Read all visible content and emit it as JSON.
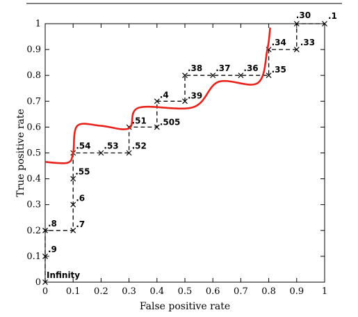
{
  "chart_data": {
    "type": "line",
    "title": "",
    "xlabel": "False positive rate",
    "ylabel": "True positive rate",
    "xlim": [
      0,
      1
    ],
    "ylim": [
      0,
      1
    ],
    "x_ticks": [
      "0",
      "0.1",
      "0.2",
      "0.3",
      "0.4",
      "0.5",
      "0.6",
      "0.7",
      "0.8",
      "0.9",
      "1"
    ],
    "y_ticks": [
      "0",
      "0.1",
      "0.2",
      "0.3",
      "0.4",
      "0.5",
      "0.6",
      "0.7",
      "0.8",
      "0.9",
      "1"
    ],
    "grid": false,
    "legend": "none",
    "series": [
      {
        "style": "dashed-step-with-x-markers",
        "color": "#000000",
        "points": [
          {
            "x": 0.0,
            "y": 0.0,
            "label": "Infinity"
          },
          {
            "x": 0.0,
            "y": 0.1,
            "label": ".9"
          },
          {
            "x": 0.0,
            "y": 0.2,
            "label": ".8"
          },
          {
            "x": 0.1,
            "y": 0.2,
            "label": ".7"
          },
          {
            "x": 0.1,
            "y": 0.3,
            "label": ".6"
          },
          {
            "x": 0.1,
            "y": 0.4,
            "label": ".55"
          },
          {
            "x": 0.1,
            "y": 0.5,
            "label": ".54"
          },
          {
            "x": 0.2,
            "y": 0.5,
            "label": ".53"
          },
          {
            "x": 0.3,
            "y": 0.5,
            "label": ".52"
          },
          {
            "x": 0.3,
            "y": 0.6,
            "label": ".51"
          },
          {
            "x": 0.4,
            "y": 0.6,
            "label": ".505"
          },
          {
            "x": 0.4,
            "y": 0.7,
            "label": ".4"
          },
          {
            "x": 0.5,
            "y": 0.7,
            "label": ".39"
          },
          {
            "x": 0.5,
            "y": 0.8,
            "label": ".38"
          },
          {
            "x": 0.6,
            "y": 0.8,
            "label": ".37"
          },
          {
            "x": 0.7,
            "y": 0.8,
            "label": ".36"
          },
          {
            "x": 0.8,
            "y": 0.8,
            "label": ".35"
          },
          {
            "x": 0.8,
            "y": 0.9,
            "label": ".34"
          },
          {
            "x": 0.9,
            "y": 0.9,
            "label": ".33"
          },
          {
            "x": 0.9,
            "y": 1.0,
            "label": ".30"
          },
          {
            "x": 1.0,
            "y": 1.0,
            "label": ".1"
          }
        ]
      },
      {
        "style": "solid-smooth",
        "color": "#e8221b",
        "points": [
          {
            "x": 0.0,
            "y": 0.465
          },
          {
            "x": 0.08,
            "y": 0.462
          },
          {
            "x": 0.1,
            "y": 0.5
          },
          {
            "x": 0.115,
            "y": 0.605
          },
          {
            "x": 0.2,
            "y": 0.605
          },
          {
            "x": 0.3,
            "y": 0.595
          },
          {
            "x": 0.335,
            "y": 0.675
          },
          {
            "x": 0.53,
            "y": 0.677
          },
          {
            "x": 0.62,
            "y": 0.775
          },
          {
            "x": 0.76,
            "y": 0.77
          },
          {
            "x": 0.795,
            "y": 0.9
          },
          {
            "x": 0.805,
            "y": 0.985
          }
        ]
      }
    ]
  }
}
